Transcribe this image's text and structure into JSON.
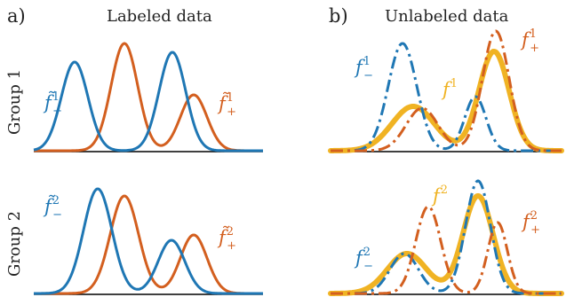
{
  "panels": {
    "a": {
      "tag": "a)",
      "title": "Labeled data"
    },
    "b": {
      "tag": "b)",
      "title": "Unlabeled data"
    }
  },
  "rows": {
    "group1": {
      "label": "Group 1"
    },
    "group2": {
      "label": "Group 2"
    }
  },
  "curve_labels": {
    "a_g1_neg": {
      "base": "f̃",
      "sup": "1",
      "sub": "−"
    },
    "a_g1_pos": {
      "base": "f̃",
      "sup": "1",
      "sub": "+"
    },
    "a_g2_neg": {
      "base": "f̃",
      "sup": "2",
      "sub": "−"
    },
    "a_g2_pos": {
      "base": "f̃",
      "sup": "2",
      "sub": "+"
    },
    "b_g1_neg": {
      "base": "f",
      "sup": "1",
      "sub": "−"
    },
    "b_g1_pos": {
      "base": "f",
      "sup": "1",
      "sub": "+"
    },
    "b_g1_mix": {
      "base": "f",
      "sup": "1",
      "sub": ""
    },
    "b_g2_neg": {
      "base": "f",
      "sup": "2",
      "sub": "−"
    },
    "b_g2_pos": {
      "base": "f",
      "sup": "2",
      "sub": "+"
    },
    "b_g2_mix": {
      "base": "f",
      "sup": "2",
      "sub": ""
    }
  },
  "colors": {
    "negative": "#1f77b4",
    "positive": "#d35f1f",
    "mixture": "#f0b323",
    "axis": "#000000"
  }
}
